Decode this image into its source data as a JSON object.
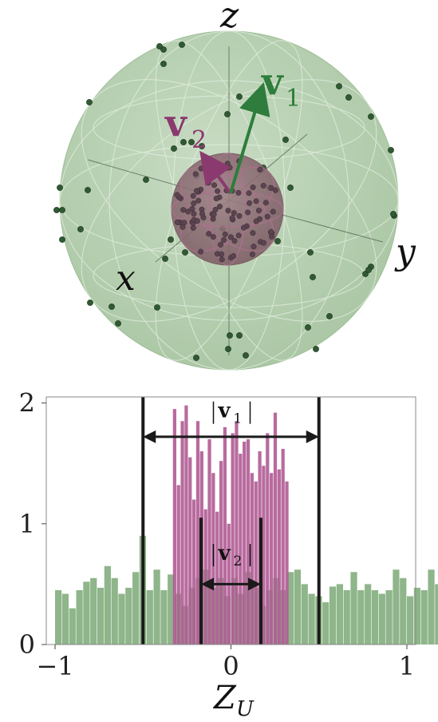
{
  "sphere_panel": {
    "axis_labels": {
      "x": "x",
      "y": "y",
      "z": "z"
    },
    "vector_labels": {
      "v1": "v",
      "v1_sub": "1",
      "v2": "v",
      "v2_sub": "2"
    },
    "colors": {
      "outer_sphere": "#b7cfb1",
      "inner_sphere": "#8c6a73",
      "v1": "#2e7d3c",
      "v2": "#8a3a6e",
      "green_points": "#2f5a32",
      "purple_points": "#5a4450"
    }
  },
  "chart_data": {
    "type": "bar",
    "subtype": "overlaid histogram",
    "xlabel": "Z",
    "xlabel_sub": "U",
    "ylabel": "",
    "xlim": [
      -1.05,
      1.05
    ],
    "ylim": [
      0,
      2.05
    ],
    "xticks": [
      -1,
      0,
      1
    ],
    "xtick_labels": [
      "−1",
      "0",
      "1"
    ],
    "yticks": [
      0,
      1,
      2
    ],
    "ytick_labels": [
      "0",
      "1",
      "2"
    ],
    "series": [
      {
        "color": "#8fb58a",
        "bin_start": -1.0,
        "bin_width": 0.04,
        "values": [
          0.45,
          0.42,
          0.3,
          0.45,
          0.52,
          0.55,
          0.47,
          0.65,
          0.55,
          0.42,
          0.47,
          0.6,
          0.9,
          0.45,
          0.62,
          0.45,
          0.58,
          0.42,
          0.32,
          0.47,
          0.55,
          0.62,
          0.47,
          0.55,
          0.4,
          0.55,
          0.42,
          0.6,
          0.47,
          0.32,
          0.45,
          0.55,
          0.45,
          0.6,
          0.62,
          0.5,
          0.42,
          0.4,
          0.35,
          0.48,
          0.5,
          0.45,
          0.6,
          0.45,
          0.5,
          0.45,
          0.42,
          0.45,
          0.62,
          0.55,
          0.4,
          0.47,
          0.45,
          0.62,
          0.5
        ]
      },
      {
        "color": "#b05b93",
        "bin_start": -0.33,
        "bin_width": 0.022,
        "values": [
          1.95,
          1.32,
          1.85,
          1.98,
          1.55,
          1.2,
          1.85,
          1.6,
          1.12,
          1.7,
          1.42,
          1.1,
          1.52,
          1.8,
          1.0,
          1.75,
          1.85,
          1.58,
          1.68,
          1.7,
          1.42,
          1.35,
          1.6,
          1.48,
          1.75,
          1.42,
          1.92,
          1.45,
          1.62,
          1.35
        ]
      }
    ],
    "vertical_lines": [
      {
        "x": -0.5,
        "height": 2.05
      },
      {
        "x": 0.5,
        "height": 2.05
      },
      {
        "x": -0.17,
        "height": 1.05
      },
      {
        "x": 0.17,
        "height": 1.05
      }
    ],
    "annotations": [
      {
        "text": "v",
        "sub": "1",
        "x_from": -0.5,
        "x_to": 0.5,
        "y": 1.72,
        "label_y": 1.88
      },
      {
        "text": "v",
        "sub": "2",
        "x_from": -0.17,
        "x_to": 0.17,
        "y": 0.5,
        "label_y": 0.7
      }
    ]
  }
}
